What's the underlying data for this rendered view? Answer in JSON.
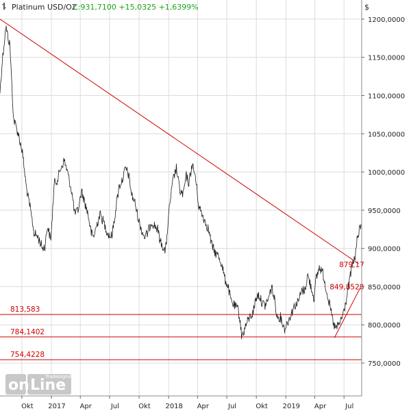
{
  "header": {
    "title": "Platinum USD/OZ",
    "stats": "C:931,7100 +15,0325 +1,6399%",
    "unit": "$"
  },
  "watermark": {
    "big_a": "on",
    "big_b": "Line",
    "small": "Tradesignal"
  },
  "colors": {
    "price": "#1a1a1a",
    "overlay": "#cc0000",
    "stats": "#1aa31a",
    "grid": "#dcdcdc",
    "watermark": "#c8c8c8"
  },
  "chart_data": {
    "type": "line",
    "title": "",
    "ylabel": "$",
    "xlim": [
      "2016-07-25",
      "2019-08-25"
    ],
    "ylim": [
      707,
      1225
    ],
    "y_ticks": [
      {
        "value": 750,
        "label": "750,0000"
      },
      {
        "value": 800,
        "label": "800,0000"
      },
      {
        "value": 850,
        "label": "850,0000"
      },
      {
        "value": 900,
        "label": "900,0000"
      },
      {
        "value": 950,
        "label": "950,0000"
      },
      {
        "value": 1000,
        "label": "1000,0000"
      },
      {
        "value": 1050,
        "label": "1050,0000"
      },
      {
        "value": 1100,
        "label": "1100,0000"
      },
      {
        "value": 1150,
        "label": "1150,0000"
      },
      {
        "value": 1200,
        "label": "1200,0000"
      }
    ],
    "x_ticks": [
      {
        "date": "2016-10-01",
        "label": "Okt"
      },
      {
        "date": "2017-01-01",
        "label": "2017"
      },
      {
        "date": "2017-04-01",
        "label": "Apr"
      },
      {
        "date": "2017-07-01",
        "label": "Jul"
      },
      {
        "date": "2017-10-01",
        "label": "Okt"
      },
      {
        "date": "2018-01-01",
        "label": "2018"
      },
      {
        "date": "2018-04-01",
        "label": "Apr"
      },
      {
        "date": "2018-07-01",
        "label": "Jul"
      },
      {
        "date": "2018-10-01",
        "label": "Okt"
      },
      {
        "date": "2019-01-01",
        "label": "2019"
      },
      {
        "date": "2019-04-01",
        "label": "Apr"
      },
      {
        "date": "2019-07-01",
        "label": "Jul"
      }
    ],
    "series": [
      {
        "x": [
          "2016-07-25",
          "2016-08-01",
          "2016-08-12",
          "2016-08-25",
          "2016-09-05",
          "2016-09-20",
          "2016-10-03",
          "2016-10-15",
          "2016-10-28",
          "2016-11-08",
          "2016-11-20",
          "2016-12-05",
          "2016-12-12",
          "2016-12-20",
          "2016-12-30",
          "2017-01-10",
          "2017-01-20",
          "2017-01-30",
          "2017-02-10",
          "2017-02-20",
          "2017-03-05",
          "2017-03-15",
          "2017-03-25",
          "2017-04-05",
          "2017-04-15",
          "2017-04-25",
          "2017-05-05",
          "2017-05-12",
          "2017-05-22",
          "2017-06-01",
          "2017-06-12",
          "2017-06-25",
          "2017-07-05",
          "2017-07-10",
          "2017-07-20",
          "2017-07-30",
          "2017-08-10",
          "2017-08-20",
          "2017-08-30",
          "2017-09-08",
          "2017-09-18",
          "2017-09-28",
          "2017-10-08",
          "2017-10-18",
          "2017-10-28",
          "2017-11-08",
          "2017-11-18",
          "2017-11-28",
          "2017-12-05",
          "2017-12-12",
          "2017-12-22",
          "2018-01-05",
          "2018-01-15",
          "2018-01-25",
          "2018-02-05",
          "2018-02-15",
          "2018-02-25",
          "2018-03-05",
          "2018-03-15",
          "2018-03-25",
          "2018-04-05",
          "2018-04-15",
          "2018-04-25",
          "2018-05-05",
          "2018-05-15",
          "2018-05-25",
          "2018-06-05",
          "2018-06-15",
          "2018-06-25",
          "2018-07-05",
          "2018-07-15",
          "2018-07-25",
          "2018-08-05",
          "2018-08-12",
          "2018-08-16",
          "2018-08-22",
          "2018-08-30",
          "2018-09-10",
          "2018-09-20",
          "2018-09-30",
          "2018-10-08",
          "2018-10-18",
          "2018-10-28",
          "2018-11-08",
          "2018-11-18",
          "2018-11-28",
          "2018-12-05",
          "2018-12-15",
          "2018-12-28",
          "2019-01-08",
          "2019-01-18",
          "2019-01-28",
          "2019-02-08",
          "2019-02-20",
          "2019-03-01",
          "2019-03-10",
          "2019-03-20",
          "2019-03-30",
          "2019-04-05",
          "2019-04-15",
          "2019-04-25",
          "2019-05-05",
          "2019-05-15",
          "2019-05-25",
          "2019-05-30",
          "2019-06-05",
          "2019-06-15",
          "2019-06-25",
          "2019-07-05",
          "2019-07-15",
          "2019-07-25",
          "2019-08-05",
          "2019-08-12",
          "2019-08-19",
          "2019-08-23"
        ],
        "y": [
          1105,
          1145,
          1190,
          1165,
          1070,
          1050,
          1025,
          980,
          950,
          920,
          915,
          900,
          903,
          930,
          910,
          985,
          990,
          1005,
          1015,
          1000,
          975,
          945,
          950,
          975,
          960,
          945,
          920,
          915,
          930,
          945,
          935,
          920,
          915,
          920,
          950,
          980,
          990,
          1005,
          995,
          970,
          960,
          940,
          925,
          915,
          920,
          935,
          930,
          925,
          910,
          905,
          895,
          960,
          990,
          1005,
          975,
          970,
          995,
          985,
          1010,
          995,
          955,
          945,
          935,
          925,
          905,
          895,
          890,
          880,
          860,
          850,
          830,
          825,
          820,
          805,
          785,
          790,
          800,
          810,
          815,
          835,
          840,
          830,
          825,
          835,
          850,
          830,
          810,
          810,
          795,
          805,
          815,
          825,
          830,
          845,
          845,
          865,
          850,
          835,
          860,
          875,
          870,
          850,
          830,
          810,
          800,
          795,
          800,
          810,
          825,
          850,
          875,
          890,
          915,
          925,
          931.71
        ]
      }
    ],
    "lines": [
      {
        "kind": "trendline",
        "from": {
          "x": "2016-07-25",
          "y": 1200
        },
        "to": {
          "x": "2019-08-15",
          "y": 880
        }
      },
      {
        "kind": "trendline",
        "from": {
          "x": "2019-06-01",
          "y": 783
        },
        "to": {
          "x": "2019-08-20",
          "y": 848
        }
      },
      {
        "kind": "horizontal",
        "y": 813.583,
        "label": "813,583"
      },
      {
        "kind": "horizontal",
        "y": 784.1402,
        "label": "784,1402"
      },
      {
        "kind": "horizontal",
        "y": 754.4228,
        "label": "754,4228"
      }
    ],
    "annotations": [
      {
        "text": "879,17",
        "x": "2019-07-25",
        "y": 879.17
      },
      {
        "text": "849,8528",
        "x": "2019-07-10",
        "y": 849.85
      }
    ]
  }
}
